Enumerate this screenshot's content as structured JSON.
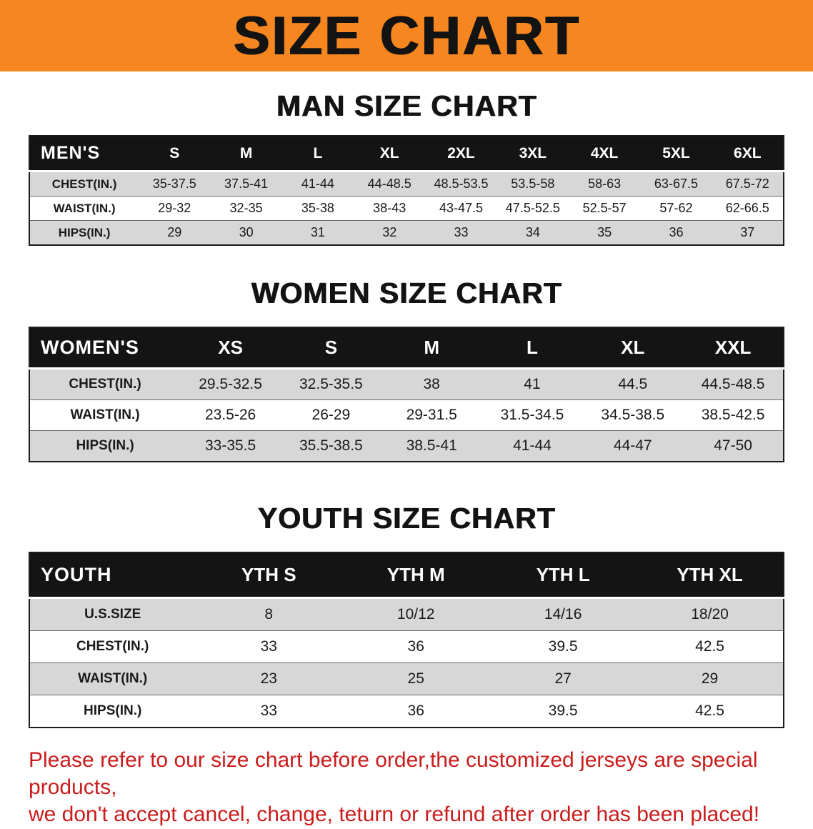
{
  "banner": {
    "title": "SIZE CHART",
    "bg_color": "#f6861f",
    "text_color": "#131313"
  },
  "chart_data": [
    {
      "type": "table",
      "title": "MAN SIZE CHART",
      "columns": [
        "MEN'S",
        "S",
        "M",
        "L",
        "XL",
        "2XL",
        "3XL",
        "4XL",
        "5XL",
        "6XL"
      ],
      "rows": [
        [
          "CHEST(IN.)",
          "35-37.5",
          "37.5-41",
          "41-44",
          "44-48.5",
          "48.5-53.5",
          "53.5-58",
          "58-63",
          "63-67.5",
          "67.5-72"
        ],
        [
          "WAIST(IN.)",
          "29-32",
          "32-35",
          "35-38",
          "38-43",
          "43-47.5",
          "47.5-52.5",
          "52.5-57",
          "57-62",
          "62-66.5"
        ],
        [
          "HIPS(IN.)",
          "29",
          "30",
          "31",
          "32",
          "33",
          "34",
          "35",
          "36",
          "37"
        ]
      ]
    },
    {
      "type": "table",
      "title": "WOMEN SIZE CHART",
      "columns": [
        "WOMEN'S",
        "XS",
        "S",
        "M",
        "L",
        "XL",
        "XXL"
      ],
      "rows": [
        [
          "CHEST(IN.)",
          "29.5-32.5",
          "32.5-35.5",
          "38",
          "41",
          "44.5",
          "44.5-48.5"
        ],
        [
          "WAIST(IN.)",
          "23.5-26",
          "26-29",
          "29-31.5",
          "31.5-34.5",
          "34.5-38.5",
          "38.5-42.5"
        ],
        [
          "HIPS(IN.)",
          "33-35.5",
          "35.5-38.5",
          "38.5-41",
          "41-44",
          "44-47",
          "47-50"
        ]
      ]
    },
    {
      "type": "table",
      "title": "YOUTH SIZE CHART",
      "columns": [
        "YOUTH",
        "YTH S",
        "YTH M",
        "YTH L",
        "YTH XL"
      ],
      "rows": [
        [
          "U.S.SIZE",
          "8",
          "10/12",
          "14/16",
          "18/20"
        ],
        [
          "CHEST(IN.)",
          "33",
          "36",
          "39.5",
          "42.5"
        ],
        [
          "WAIST(IN.)",
          "23",
          "25",
          "27",
          "29"
        ],
        [
          "HIPS(IN.)",
          "33",
          "36",
          "39.5",
          "42.5"
        ]
      ]
    }
  ],
  "table_style": {
    "header_bg": "#141414",
    "header_text": "#ffffff",
    "odd_row_bg": "#d7d7d7",
    "even_row_bg": "#ffffff"
  },
  "footer": {
    "line1": "Please refer to our size chart before order,the customized jerseys are special products,",
    "line2": "we don't accept cancel, change, teturn or refund after order has been placed!",
    "color": "#cb1c1c"
  }
}
